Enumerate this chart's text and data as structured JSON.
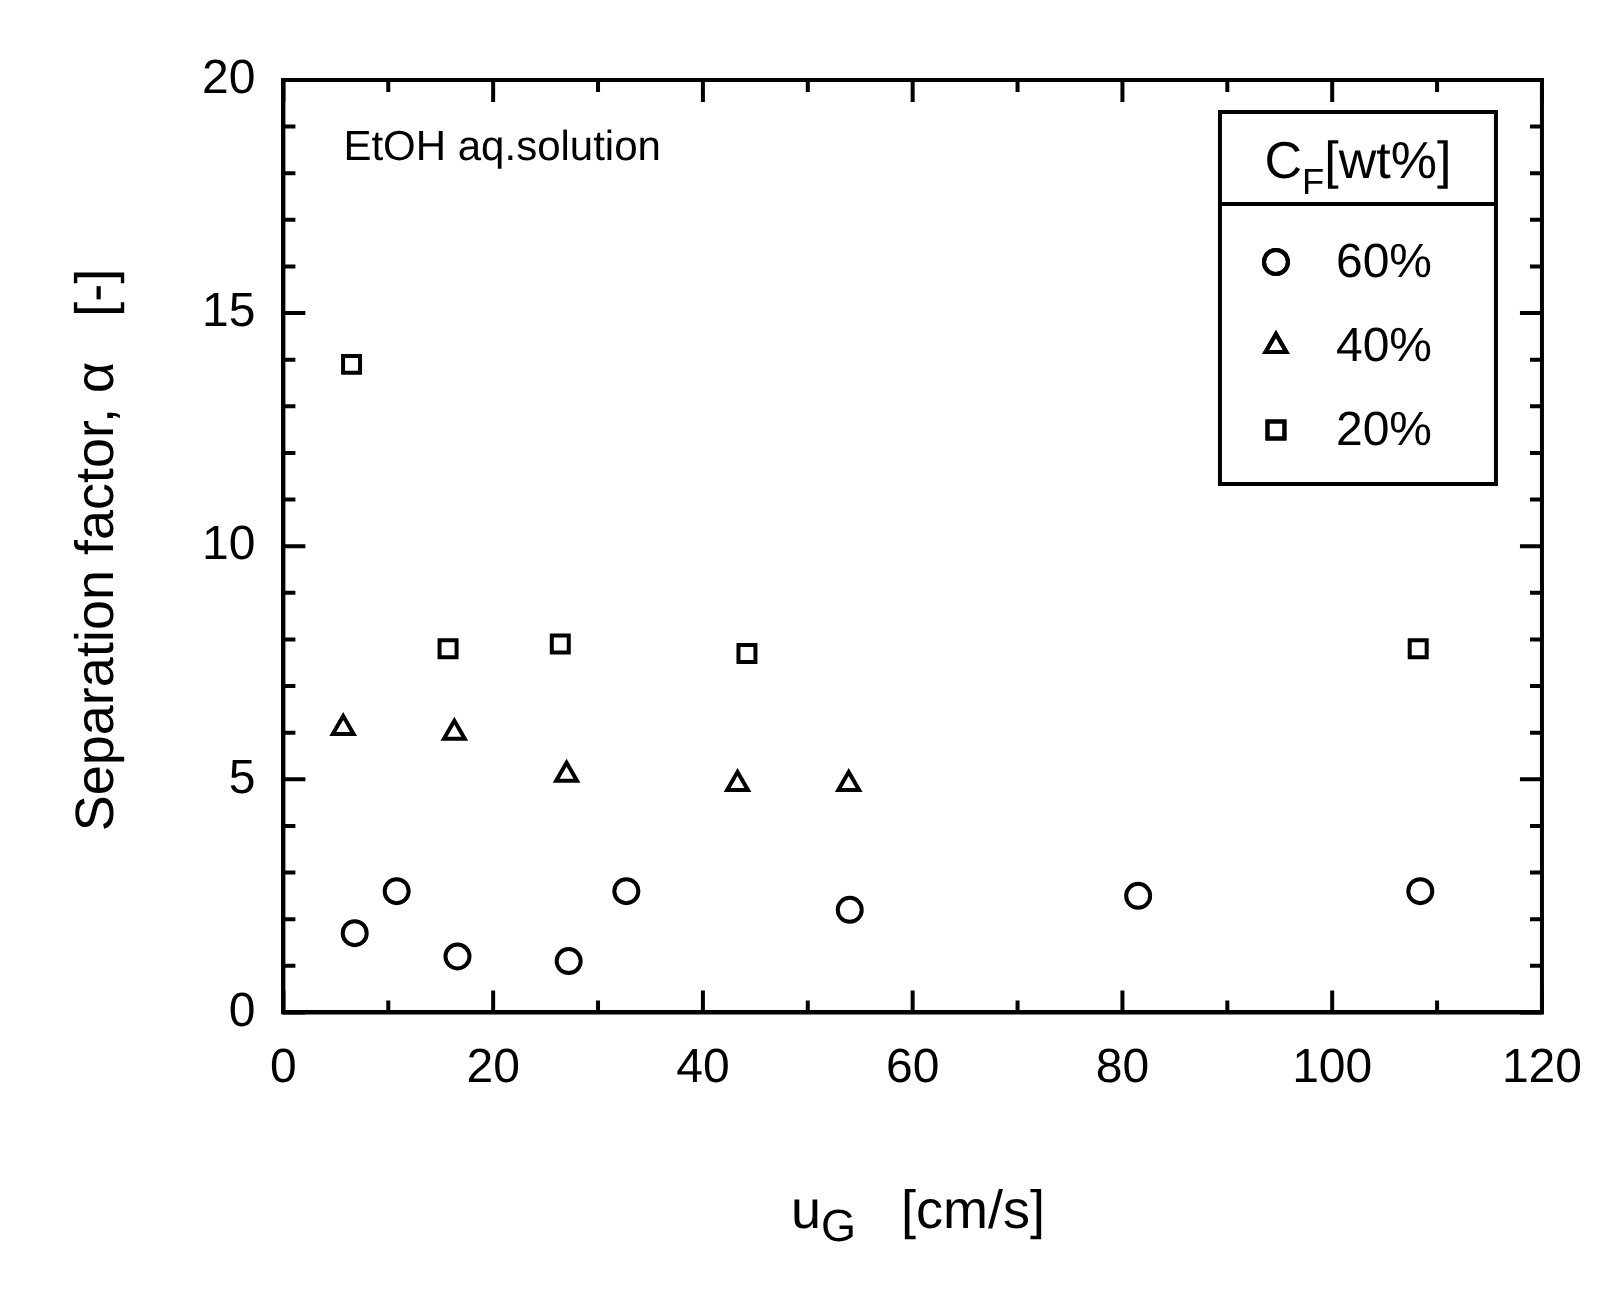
{
  "chart_data": {
    "type": "scatter",
    "xlabel": "u$_{G}$   [cm/s]",
    "ylabel": "Separation factor, α   [-]",
    "legend_title": "C$_{F}$[wt%]",
    "legend": "top right",
    "grid": false,
    "annotations": [
      "EtOH aq.solution"
    ],
    "xlim": [
      0,
      120
    ],
    "xticks": [
      0,
      {
        "value": 10,
        "label": null
      },
      20,
      {
        "value": 30,
        "label": null
      },
      40,
      {
        "value": 50,
        "label": null
      },
      60,
      {
        "value": 70,
        "label": null
      },
      80,
      {
        "value": 90,
        "label": null
      },
      100,
      {
        "value": 110,
        "label": null
      },
      120
    ],
    "ylim": [
      0,
      20
    ],
    "yticks": [
      0,
      {
        "value": 1,
        "label": null
      },
      {
        "value": 2,
        "label": null
      },
      {
        "value": 3,
        "label": null
      },
      {
        "value": 4,
        "label": null
      },
      5,
      {
        "value": 6,
        "label": null
      },
      {
        "value": 7,
        "label": null
      },
      {
        "value": 8,
        "label": null
      },
      {
        "value": 9,
        "label": null
      },
      10,
      {
        "value": 11,
        "label": null
      },
      {
        "value": 12,
        "label": null
      },
      {
        "value": 13,
        "label": null
      },
      {
        "value": 14,
        "label": null
      },
      15,
      {
        "value": 16,
        "label": null
      },
      {
        "value": 17,
        "label": null
      },
      {
        "value": 18,
        "label": null
      },
      {
        "value": 19,
        "label": null
      },
      20
    ],
    "series": [
      {
        "name": "60%",
        "color": "#000000",
        "marker": "circle",
        "x": [
          6.8,
          10.8,
          16.6,
          27.2,
          32.7,
          54.0,
          81.5,
          108.4
        ],
        "values": [
          1.7,
          2.6,
          1.2,
          1.1,
          2.6,
          2.2,
          2.5,
          2.6
        ]
      },
      {
        "name": "40%",
        "color": "#000000",
        "marker": "triangle",
        "x": [
          5.7,
          16.3,
          27.0,
          43.3,
          53.9
        ],
        "values": [
          6.1,
          6.0,
          5.1,
          4.9,
          4.9
        ]
      },
      {
        "name": "20%",
        "color": "#000000",
        "marker": "square",
        "x": [
          6.5,
          15.7,
          26.4,
          44.2,
          108.2
        ],
        "values": [
          13.9,
          7.8,
          7.9,
          7.7,
          7.8
        ]
      }
    ]
  }
}
